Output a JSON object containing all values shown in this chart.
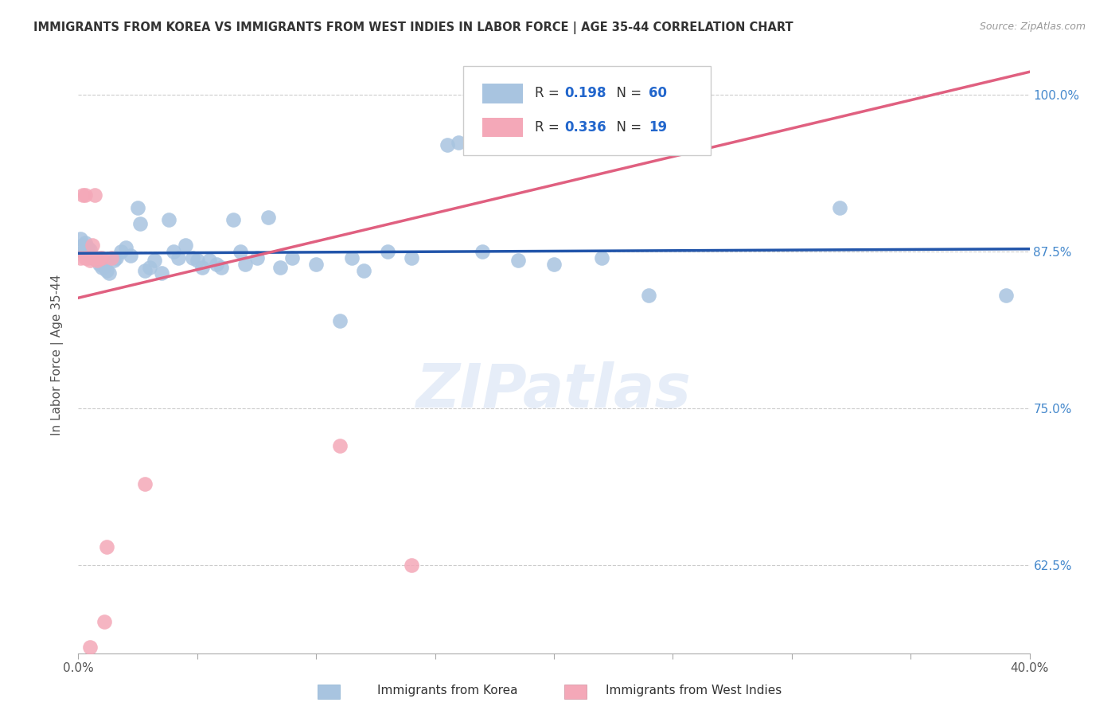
{
  "title": "IMMIGRANTS FROM KOREA VS IMMIGRANTS FROM WEST INDIES IN LABOR FORCE | AGE 35-44 CORRELATION CHART",
  "source": "Source: ZipAtlas.com",
  "ylabel": "In Labor Force | Age 35-44",
  "xlim": [
    0.0,
    0.4
  ],
  "ylim": [
    0.555,
    1.03
  ],
  "xticks": [
    0.0,
    0.05,
    0.1,
    0.15,
    0.2,
    0.25,
    0.3,
    0.35,
    0.4
  ],
  "xticklabels": [
    "0.0%",
    "",
    "",
    "",
    "",
    "",
    "",
    "",
    "40.0%"
  ],
  "ytick_positions": [
    0.625,
    0.75,
    0.875,
    1.0
  ],
  "yticklabels": [
    "62.5%",
    "75.0%",
    "87.5%",
    "100.0%"
  ],
  "korea_R": 0.198,
  "korea_N": 60,
  "westindies_R": 0.336,
  "westindies_N": 19,
  "korea_color": "#a8c4e0",
  "westindies_color": "#f4a8b8",
  "korea_line_color": "#2255aa",
  "westindies_line_color": "#e06080",
  "watermark": "ZIPatlas",
  "korea_x": [
    0.001,
    0.002,
    0.002,
    0.003,
    0.003,
    0.004,
    0.004,
    0.005,
    0.005,
    0.006,
    0.007,
    0.008,
    0.009,
    0.01,
    0.011,
    0.012,
    0.013,
    0.015,
    0.016,
    0.018,
    0.02,
    0.022,
    0.025,
    0.026,
    0.028,
    0.03,
    0.032,
    0.035,
    0.038,
    0.04,
    0.042,
    0.045,
    0.048,
    0.05,
    0.052,
    0.055,
    0.058,
    0.06,
    0.065,
    0.068,
    0.07,
    0.075,
    0.08,
    0.085,
    0.09,
    0.1,
    0.11,
    0.115,
    0.12,
    0.13,
    0.14,
    0.155,
    0.16,
    0.17,
    0.185,
    0.2,
    0.22,
    0.24,
    0.32,
    0.39
  ],
  "korea_y": [
    0.885,
    0.88,
    0.875,
    0.882,
    0.877,
    0.878,
    0.873,
    0.872,
    0.876,
    0.87,
    0.87,
    0.868,
    0.865,
    0.862,
    0.863,
    0.86,
    0.858,
    0.868,
    0.87,
    0.875,
    0.878,
    0.872,
    0.91,
    0.897,
    0.86,
    0.862,
    0.868,
    0.858,
    0.9,
    0.875,
    0.87,
    0.88,
    0.87,
    0.868,
    0.862,
    0.868,
    0.865,
    0.862,
    0.9,
    0.875,
    0.865,
    0.87,
    0.902,
    0.862,
    0.87,
    0.865,
    0.82,
    0.87,
    0.86,
    0.875,
    0.87,
    0.96,
    0.962,
    0.875,
    0.868,
    0.865,
    0.87,
    0.84,
    0.91,
    0.84
  ],
  "westindies_x": [
    0.001,
    0.002,
    0.003,
    0.003,
    0.004,
    0.005,
    0.006,
    0.007,
    0.007,
    0.008,
    0.009,
    0.01,
    0.011,
    0.012,
    0.014,
    0.028,
    0.11,
    0.14,
    0.005
  ],
  "westindies_y": [
    0.87,
    0.92,
    0.87,
    0.92,
    0.87,
    0.868,
    0.88,
    0.87,
    0.92,
    0.868,
    0.87,
    0.87,
    0.58,
    0.64,
    0.87,
    0.69,
    0.72,
    0.625,
    0.56
  ]
}
